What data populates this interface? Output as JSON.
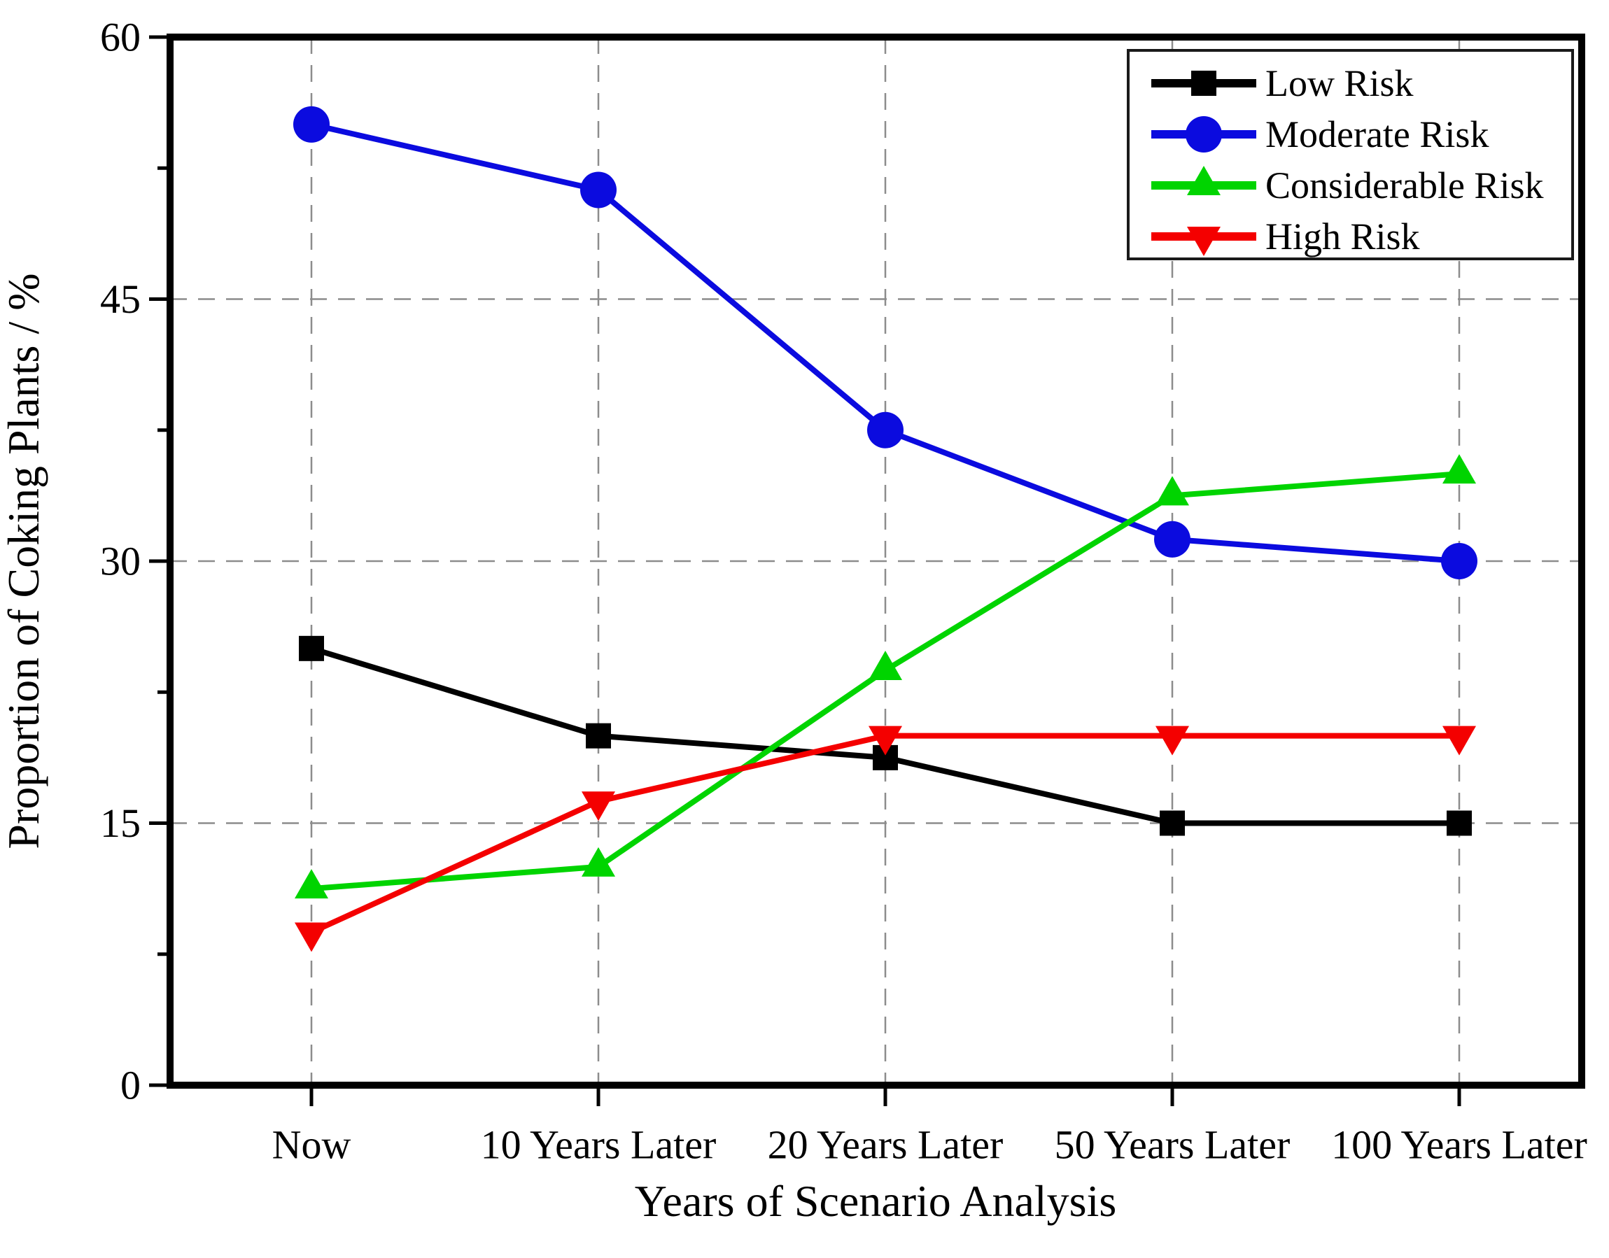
{
  "chart_data": {
    "type": "line",
    "title": "",
    "xlabel": "Years of Scenario Analysis",
    "ylabel": "Proportion of Coking Plants / %",
    "categories": [
      "Now",
      "10 Years Later",
      "20 Years Later",
      "50 Years Later",
      "100 Years Later"
    ],
    "series": [
      {
        "name": "Low Risk",
        "color": "#000000",
        "marker": "square",
        "values": [
          25,
          20,
          18.75,
          15,
          15
        ]
      },
      {
        "name": "Moderate Risk",
        "color": "#0b0bdf",
        "marker": "circle",
        "values": [
          55,
          51.25,
          37.5,
          31.25,
          30
        ]
      },
      {
        "name": "Considerable Risk",
        "color": "#00d400",
        "marker": "triangle-up",
        "values": [
          11.25,
          12.5,
          23.75,
          33.75,
          35
        ]
      },
      {
        "name": "High Risk",
        "color": "#f40000",
        "marker": "triangle-down",
        "values": [
          8.75,
          16.25,
          20,
          20,
          20
        ]
      }
    ],
    "ylim": [
      0,
      60
    ],
    "yticks": [
      0,
      15,
      30,
      45,
      60
    ],
    "yticks_minor": [
      7.5,
      22.5,
      37.5,
      52.5
    ],
    "grid": "dashed gray horizontal at major y ticks and vertical at each category",
    "legend_position": "top-right"
  }
}
